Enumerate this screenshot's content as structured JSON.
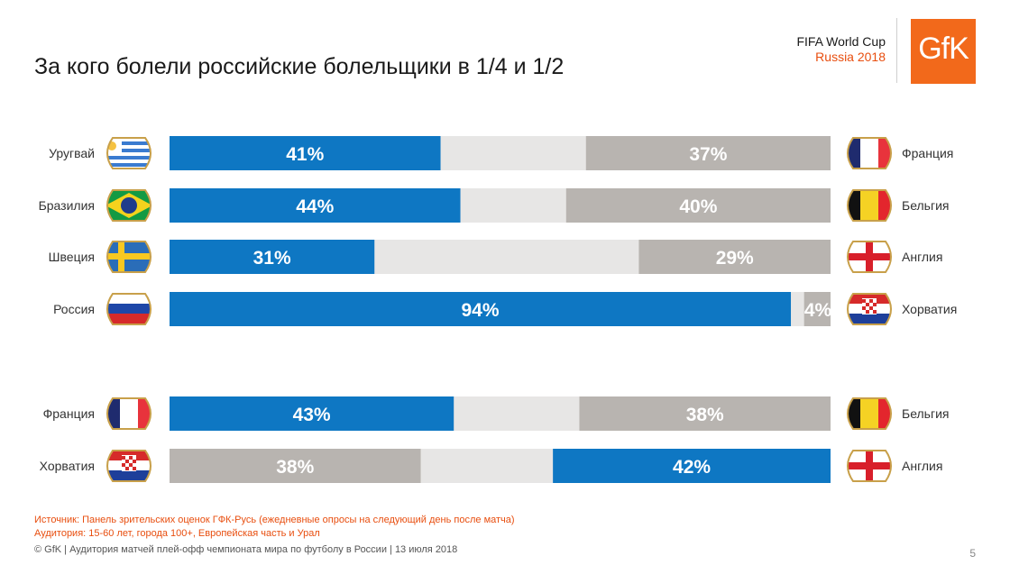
{
  "title": "За кого болели российские болельщики в 1/4 и 1/2",
  "event": {
    "line1": "FIFA World Cup",
    "line2": "Russia 2018"
  },
  "logo_text": "GfK",
  "colors": {
    "left": "#0e77c3",
    "middle": "#e7e6e5",
    "right": "#b8b4b0",
    "accent": "#e84e0f",
    "logo_bg": "#f2691b"
  },
  "chart_data": {
    "type": "bar",
    "subtype": "stacked-horizontal-100",
    "groups": [
      {
        "name": "1/4",
        "rows": [
          {
            "left_team": "Уругвай",
            "left_flag": "uruguay-flag",
            "left_value": 41,
            "right_team": "Франция",
            "right_flag": "france-flag",
            "right_value": 37,
            "left_color": "blue",
            "right_color": "gray"
          },
          {
            "left_team": "Бразилия",
            "left_flag": "brazil-flag",
            "left_value": 44,
            "right_team": "Бельгия",
            "right_flag": "belgium-flag",
            "right_value": 40,
            "left_color": "blue",
            "right_color": "gray"
          },
          {
            "left_team": "Швеция",
            "left_flag": "sweden-flag",
            "left_value": 31,
            "right_team": "Англия",
            "right_flag": "england-flag",
            "right_value": 29,
            "left_color": "blue",
            "right_color": "gray"
          },
          {
            "left_team": "Россия",
            "left_flag": "russia-flag",
            "left_value": 94,
            "right_team": "Хорватия",
            "right_flag": "croatia-flag",
            "right_value": 4,
            "left_color": "blue",
            "right_color": "gray"
          }
        ]
      },
      {
        "name": "1/2",
        "rows": [
          {
            "left_team": "Франция",
            "left_flag": "france-flag",
            "left_value": 43,
            "right_team": "Бельгия",
            "right_flag": "belgium-flag",
            "right_value": 38,
            "left_color": "blue",
            "right_color": "gray"
          },
          {
            "left_team": "Хорватия",
            "left_flag": "croatia-flag",
            "left_value": 38,
            "right_team": "Англия",
            "right_flag": "england-flag",
            "right_value": 42,
            "left_color": "gray",
            "right_color": "blue"
          }
        ]
      }
    ],
    "value_suffix": "%",
    "xlim": [
      0,
      100
    ]
  },
  "footer": {
    "source": "Источник: Панель зрительских оценок ГФК-Русь (ежедневные опросы на следующий день после матча)",
    "audience": "Аудитория: 15-60 лет, города 100+, Европейская часть и Урал",
    "copyright": "© GfK | Аудитория матчей плей-офф чемпионата мира по футболу в России | 13 июля 2018"
  },
  "page_number": "5"
}
